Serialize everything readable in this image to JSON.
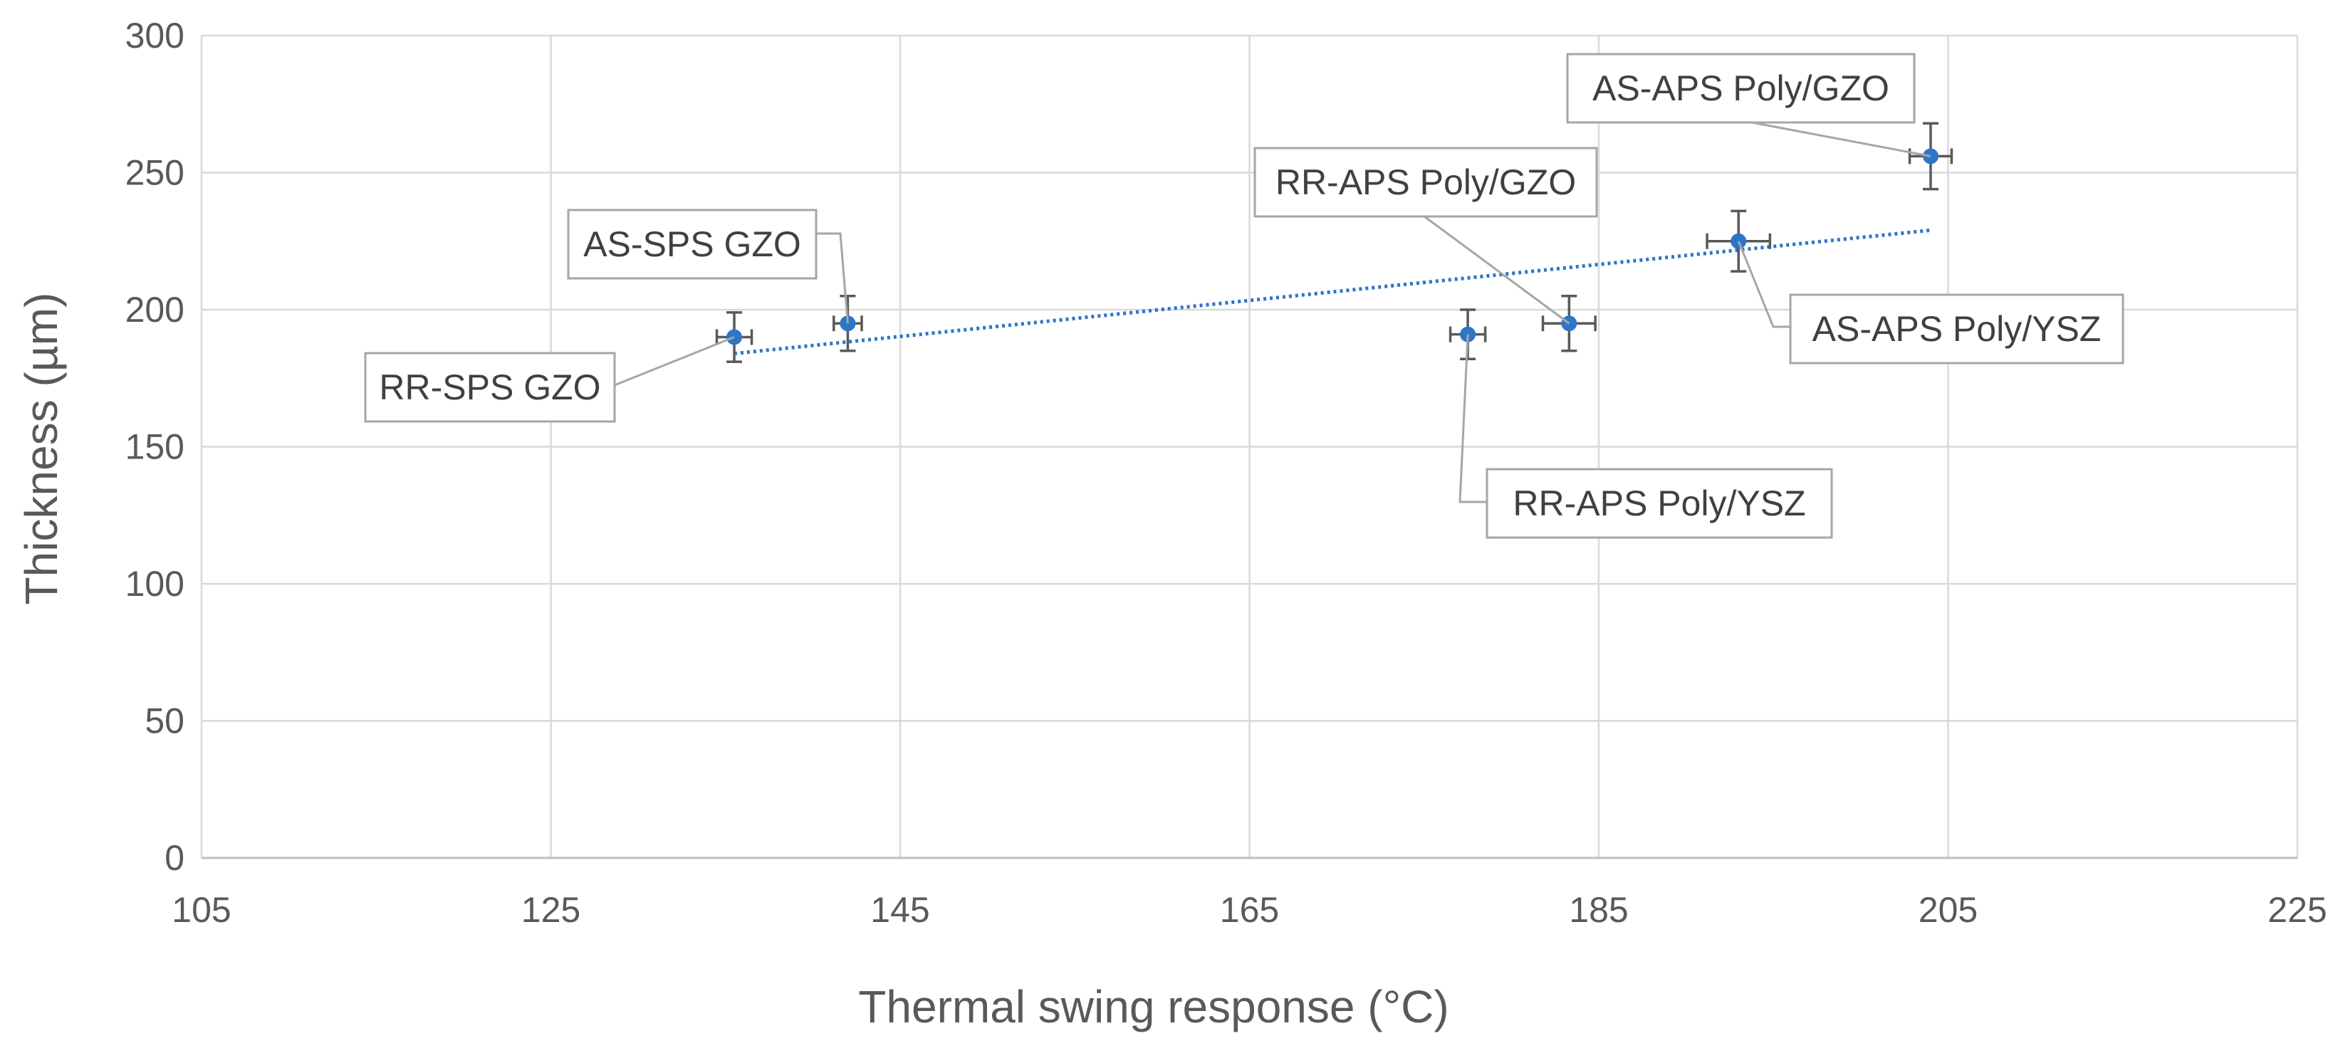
{
  "chart_data": {
    "type": "scatter",
    "title": "",
    "xlabel": "Thermal swing response (°C)",
    "ylabel": "Thickness (µm)",
    "xlim": [
      105,
      225
    ],
    "ylim": [
      0,
      300
    ],
    "x_ticks": [
      "105",
      "125",
      "145",
      "165",
      "185",
      "205",
      "225"
    ],
    "y_ticks": [
      "0",
      "50",
      "100",
      "150",
      "200",
      "250",
      "300"
    ],
    "grid": true,
    "point_color": "#2E75C8",
    "trendline_color": "#2E75C8",
    "errorbar_color": "#595959",
    "points": [
      {
        "label": "RR-SPS GZO",
        "x": 135.5,
        "y": 190,
        "x_err": 1.0,
        "y_err": 9
      },
      {
        "label": "AS-SPS GZO",
        "x": 142.0,
        "y": 195,
        "x_err": 0.8,
        "y_err": 10
      },
      {
        "label": "RR-APS Poly/YSZ",
        "x": 177.5,
        "y": 191,
        "x_err": 1.0,
        "y_err": 9
      },
      {
        "label": "RR-APS Poly/GZO",
        "x": 183.3,
        "y": 195,
        "x_err": 1.5,
        "y_err": 10
      },
      {
        "label": "AS-APS Poly/YSZ",
        "x": 193.0,
        "y": 225,
        "x_err": 1.8,
        "y_err": 11
      },
      {
        "label": "AS-APS Poly/GZO",
        "x": 204.0,
        "y": 256,
        "x_err": 1.2,
        "y_err": 12
      }
    ],
    "trendline": {
      "type": "linear",
      "x": [
        135.5,
        204.0
      ],
      "y": [
        184,
        229
      ]
    }
  }
}
